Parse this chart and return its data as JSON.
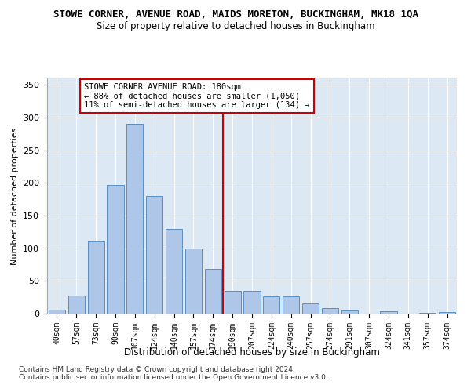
{
  "title": "STOWE CORNER, AVENUE ROAD, MAIDS MORETON, BUCKINGHAM, MK18 1QA",
  "subtitle": "Size of property relative to detached houses in Buckingham",
  "xlabel": "Distribution of detached houses by size in Buckingham",
  "ylabel": "Number of detached properties",
  "categories": [
    "40sqm",
    "57sqm",
    "73sqm",
    "90sqm",
    "107sqm",
    "124sqm",
    "140sqm",
    "157sqm",
    "174sqm",
    "190sqm",
    "207sqm",
    "224sqm",
    "240sqm",
    "257sqm",
    "274sqm",
    "291sqm",
    "307sqm",
    "324sqm",
    "341sqm",
    "357sqm",
    "374sqm"
  ],
  "values": [
    6,
    28,
    110,
    197,
    290,
    180,
    130,
    100,
    68,
    35,
    35,
    26,
    26,
    16,
    8,
    5,
    0,
    4,
    0,
    1,
    2
  ],
  "bar_color": "#aec6e8",
  "bar_edge_color": "#5a8fc0",
  "vline_x": 8.5,
  "vline_color": "#cc0000",
  "annotation_text": "STOWE CORNER AVENUE ROAD: 180sqm\n← 88% of detached houses are smaller (1,050)\n11% of semi-detached houses are larger (134) →",
  "annotation_box_color": "#cc0000",
  "ylim": [
    0,
    360
  ],
  "yticks": [
    0,
    50,
    100,
    150,
    200,
    250,
    300,
    350
  ],
  "bg_color": "#dce9f5",
  "footer1": "Contains HM Land Registry data © Crown copyright and database right 2024.",
  "footer2": "Contains public sector information licensed under the Open Government Licence v3.0."
}
